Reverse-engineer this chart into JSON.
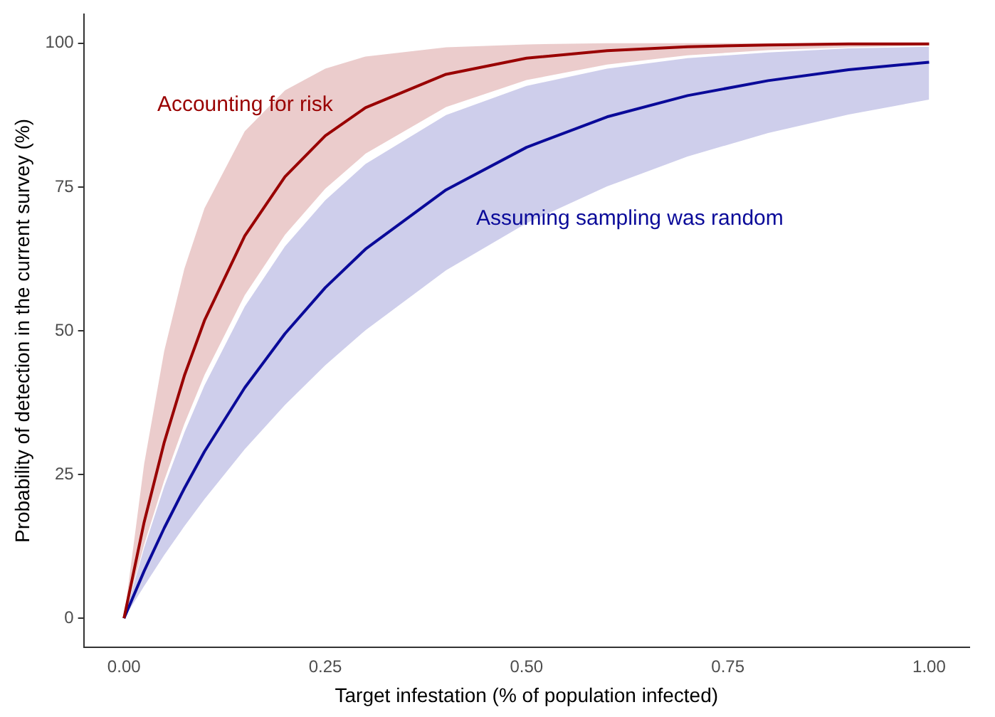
{
  "chart_data": {
    "type": "line",
    "xlabel": "Target infestation (% of population infected)",
    "ylabel": "Probability of detection in the current survey (%)",
    "x": [
      0,
      0.025,
      0.05,
      0.075,
      0.1,
      0.15,
      0.2,
      0.25,
      0.3,
      0.4,
      0.5,
      0.6,
      0.7,
      0.8,
      0.9,
      1
    ],
    "series": [
      {
        "name": "Accounting for risk",
        "color": "#990000",
        "values": [
          0,
          16.7,
          30.6,
          42.2,
          51.8,
          66.5,
          76.8,
          83.9,
          88.8,
          94.6,
          97.4,
          98.7,
          99.4,
          99.7,
          99.9,
          99.9
        ],
        "lower": [
          0,
          12.8,
          24,
          33.8,
          42.3,
          56.2,
          66.7,
          74.7,
          80.8,
          88.9,
          93.6,
          96.3,
          97.9,
          98.8,
          99.3,
          99.6
        ],
        "upper": [
          0,
          26.8,
          46.5,
          60.8,
          71.3,
          84.7,
          91.8,
          95.6,
          97.7,
          99.3,
          99.8,
          100,
          100,
          100,
          100,
          100
        ]
      },
      {
        "name": "Assuming sampling was random",
        "color": "#0a0a99",
        "values": [
          0,
          8.2,
          15.7,
          22.6,
          29,
          40.1,
          49.5,
          57.5,
          64.2,
          74.5,
          81.9,
          87.2,
          90.9,
          93.5,
          95.4,
          96.7
        ],
        "lower": [
          0,
          5.6,
          11,
          16,
          20.7,
          29.4,
          37.1,
          44,
          50.1,
          60.5,
          68.7,
          75.1,
          80.3,
          84.4,
          87.6,
          90.2
        ],
        "upper": [
          0,
          12.2,
          22.9,
          32.3,
          40.5,
          54.2,
          64.7,
          72.7,
          79,
          87.5,
          92.6,
          95.6,
          97.4,
          98.4,
          99.1,
          99.4
        ]
      }
    ],
    "xlim": [
      -0.05,
      1.05
    ],
    "ylim": [
      -5,
      105
    ],
    "xticks": [
      {
        "value": 0,
        "label": "0.00"
      },
      {
        "value": 0.25,
        "label": "0.25"
      },
      {
        "value": 0.5,
        "label": "0.50"
      },
      {
        "value": 0.75,
        "label": "0.75"
      },
      {
        "value": 1,
        "label": "1.00"
      }
    ],
    "yticks": [
      0,
      25,
      50,
      75,
      100
    ],
    "grid": false,
    "legend": false
  }
}
